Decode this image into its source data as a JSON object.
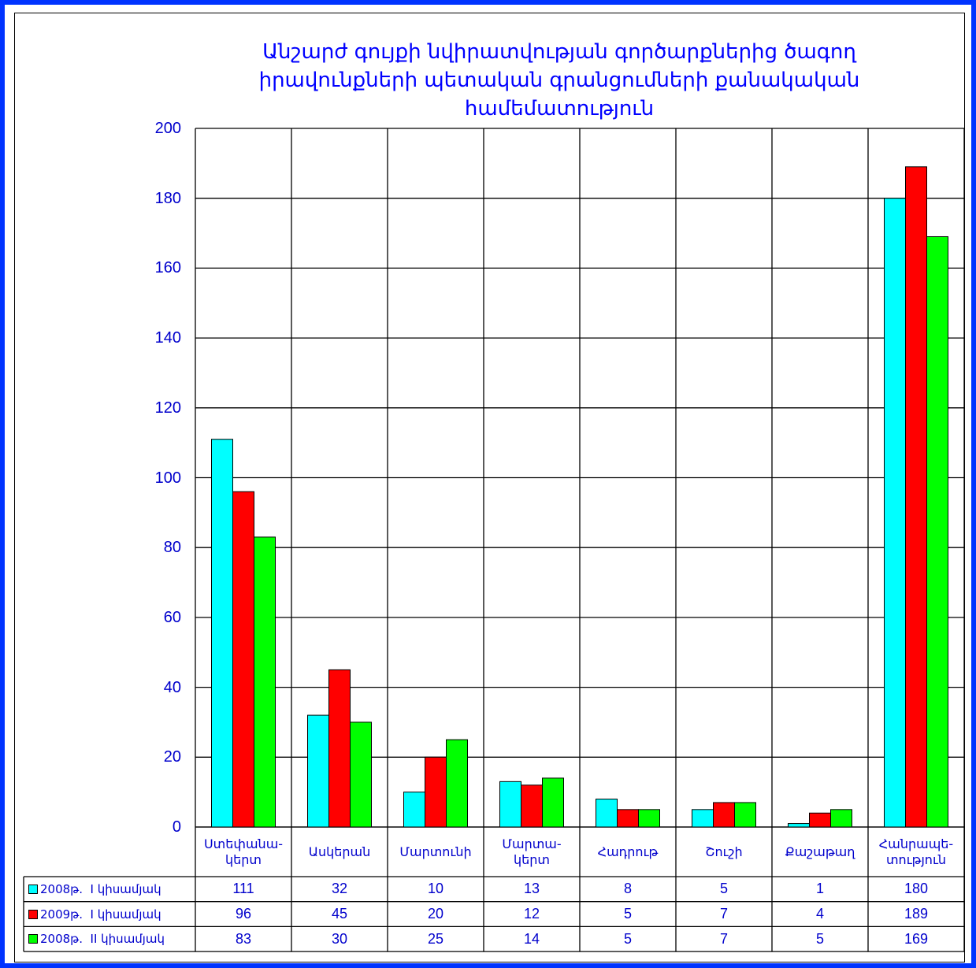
{
  "chart_data": {
    "type": "bar",
    "title": "Անշարժ գույքի նվիրատվության  գործարքներից  ծագող\nիրավունքների պետական գրանցումների քանակական\nհամեմատություն",
    "categories": [
      "Ստեփանա-\nկերտ",
      "Ասկերան",
      "Մարտունի",
      "Մարտա-\nկերտ",
      "Հադրութ",
      "Շուշի",
      "Քաշաթաղ",
      "Հանրապե-\nտություն"
    ],
    "series": [
      {
        "name": "2008թ.  I կիսամյակ",
        "color": "#00ffff",
        "values": [
          111,
          32,
          10,
          13,
          8,
          5,
          1,
          180
        ]
      },
      {
        "name": "2009թ.  I կիսամյակ",
        "color": "#ff0000",
        "values": [
          96,
          45,
          20,
          12,
          5,
          7,
          4,
          189
        ]
      },
      {
        "name": "2008թ.  II կիսամյակ",
        "color": "#00ff00",
        "values": [
          83,
          30,
          25,
          14,
          5,
          7,
          5,
          169
        ]
      }
    ],
    "ylim": [
      0,
      200
    ],
    "yticks": [
      0,
      20,
      40,
      60,
      80,
      100,
      120,
      140,
      160,
      180,
      200
    ],
    "grid": true,
    "legend": "table"
  }
}
